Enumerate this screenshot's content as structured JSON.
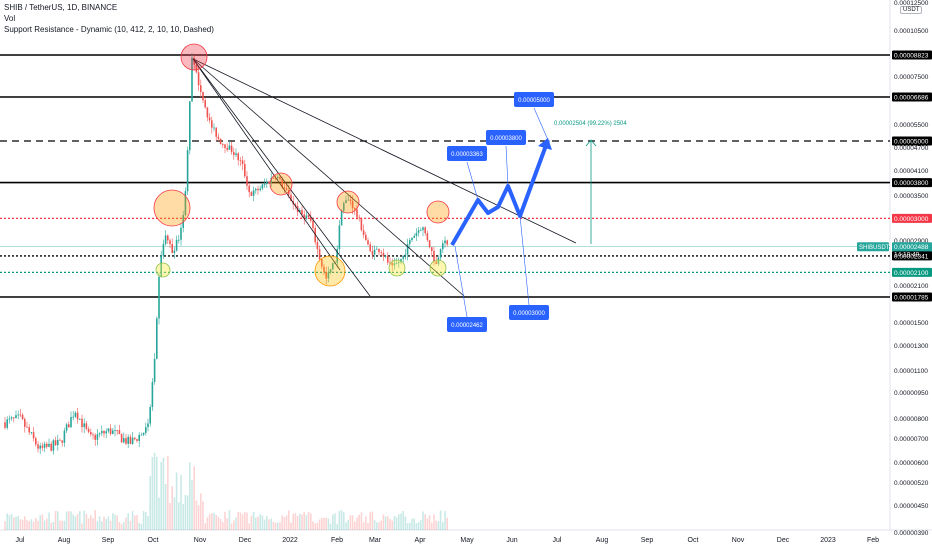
{
  "header": {
    "title": "SHIB / TetherUS, 1D, BINANCE",
    "vol": "Vol",
    "indicator": "Support Resistance - Dynamic (10, 412, 2, 10, 10, Dashed)"
  },
  "currency_button": "USDT",
  "chart_data": {
    "type": "candlestick",
    "symbol": "SHIBUSDT",
    "countdown": "14:10:49",
    "last_price": "0.00002488",
    "x_ticks": [
      "Jul",
      "Aug",
      "Sep",
      "Oct",
      "Nov",
      "Dec",
      "2022",
      "Feb",
      "Mar",
      "Apr",
      "May",
      "Jun",
      "Jul",
      "Aug",
      "Sep",
      "Oct",
      "Nov",
      "Dec",
      "2023",
      "Feb"
    ],
    "y_ticks": [
      "0.00012500",
      "0.00010500",
      "0.00007500",
      "0.00005500",
      "0.00004700",
      "0.00004100",
      "0.00003500",
      "0.00002900",
      "0.00002100",
      "0.00001500",
      "0.00001300",
      "0.00001100",
      "0.00000950",
      "0.00000800",
      "0.00000700",
      "0.00000600",
      "0.00000520",
      "0.00000450",
      "0.00000390"
    ],
    "y_scale": "log",
    "price_axis_labels": [
      {
        "text": "0.00008823",
        "value": 8.823e-05,
        "style": "black"
      },
      {
        "text": "0.00006686",
        "value": 6.686e-05,
        "style": "black"
      },
      {
        "text": "0.00005000",
        "value": 5e-05,
        "style": "black"
      },
      {
        "text": "0.00003800",
        "value": 3.8e-05,
        "style": "black"
      },
      {
        "text": "0.00003000",
        "value": 3e-05,
        "style": "red"
      },
      {
        "text": "0.00002488",
        "value": 2.488e-05,
        "style": "teal"
      },
      {
        "text": "0.00002341",
        "value": 2.341e-05,
        "style": "black"
      },
      {
        "text": "0.00002100",
        "value": 2.1e-05,
        "style": "green"
      },
      {
        "text": "0.00001785",
        "value": 1.785e-05,
        "style": "black"
      }
    ],
    "horizontal_levels": [
      {
        "value": 8.823e-05,
        "style": "solid",
        "color": "#000000"
      },
      {
        "value": 6.686e-05,
        "style": "solid",
        "color": "#000000"
      },
      {
        "value": 5e-05,
        "style": "dashed",
        "color": "#000000"
      },
      {
        "value": 3.8e-05,
        "style": "solid",
        "color": "#000000"
      },
      {
        "value": 3e-05,
        "style": "dotted",
        "color": "#f23645"
      },
      {
        "value": 2.341e-05,
        "style": "dotted",
        "color": "#000000"
      },
      {
        "value": 2.1e-05,
        "style": "dotted",
        "color": "#089981"
      },
      {
        "value": 1.785e-05,
        "style": "solid",
        "color": "#000000"
      }
    ],
    "projection_callouts": [
      {
        "text": "0.00003363",
        "value": 3.363e-05
      },
      {
        "text": "0.00003800",
        "value": 3.8e-05
      },
      {
        "text": "0.00005000",
        "value": 5e-05
      },
      {
        "text": "0.00002462",
        "value": 2.462e-05
      },
      {
        "text": "0.00003000",
        "value": 3e-05
      }
    ],
    "measure_label": "0.00002504 (99.22%) 2504",
    "series": [
      {
        "name": "price",
        "candles": [
          {
            "t": "Jul",
            "c": 7.2e-06
          },
          {
            "t": "Aug",
            "c": 6.8e-06
          },
          {
            "t": "Sep",
            "c": 7.5e-06
          },
          {
            "t": "Oct",
            "c": 2.5e-05
          },
          {
            "t": "late Oct",
            "c": 8.5e-05
          },
          {
            "t": "Nov",
            "c": 6e-05
          },
          {
            "t": "Dec",
            "c": 3.8e-05
          },
          {
            "t": "2022",
            "c": 3e-05
          },
          {
            "t": "Feb",
            "c": 3.3e-05
          },
          {
            "t": "Mar",
            "c": 2.4e-05
          },
          {
            "t": "Apr",
            "c": 2.49e-05
          }
        ]
      }
    ]
  }
}
